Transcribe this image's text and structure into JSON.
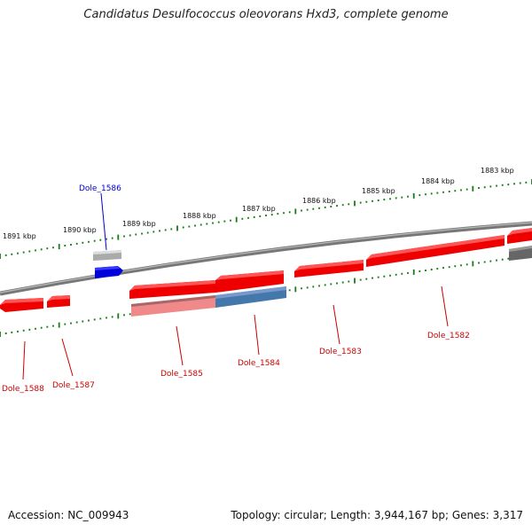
{
  "title": "Candidatus Desulfococcus oleovorans Hxd3, complete genome",
  "footer": {
    "accession": "Accession: NC_009943",
    "summary": "Topology: circular; Length: 3,944,167 bp; Genes: 3,317"
  },
  "scale_labels": [
    "1891 kbp",
    "1890 kbp",
    "1889 kbp",
    "1888 kbp",
    "1887 kbp",
    "1886 kbp",
    "1885 kbp",
    "1884 kbp",
    "1883 kbp"
  ],
  "genes": [
    {
      "name": "Dole_1586",
      "color": "#0000cc"
    },
    {
      "name": "Dole_1588",
      "color": "#cc0000"
    },
    {
      "name": "Dole_1587",
      "color": "#cc0000"
    },
    {
      "name": "Dole_1585",
      "color": "#cc0000"
    },
    {
      "name": "Dole_1584",
      "color": "#cc0000"
    },
    {
      "name": "Dole_1583",
      "color": "#cc0000"
    },
    {
      "name": "Dole_1582",
      "color": "#cc0000"
    }
  ],
  "colors": {
    "backbone": "#777777",
    "tick": "#1a7a1a",
    "gene_red": "#ee0000",
    "gene_blue": "#0000dd",
    "gene_steel": "#4477aa",
    "gene_pink": "#f08a8a",
    "gene_gray": "#999999",
    "gene_dark": "#666666"
  }
}
